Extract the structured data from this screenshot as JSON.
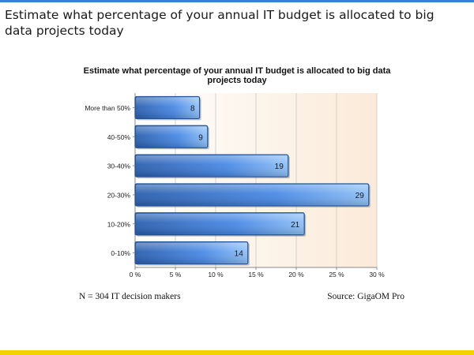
{
  "slide": {
    "title": "Estimate what percentage of your annual IT budget is allocated to big data projects today",
    "note": "N = 304 IT decision makers",
    "source": "Source: GigaOM Pro"
  },
  "colors": {
    "bar_dark": "#2b5fae",
    "bar_light": "#8fc0f7",
    "plot_bg_right": "#fbead8",
    "accent_bar": "#f2d200",
    "top_rule": "#3b7fd0"
  },
  "chart_data": {
    "type": "bar",
    "orientation": "horizontal",
    "title_lines": [
      "Estimate what percentage of your annual IT budget is allocated to big data",
      "projects today"
    ],
    "categories": [
      "More than 50%",
      "40-50%",
      "30-40%",
      "20-30%",
      "10-20%",
      "0-10%"
    ],
    "values": [
      8,
      9,
      19,
      29,
      21,
      14
    ],
    "data_labels": [
      "8",
      "9",
      "19",
      "29",
      "21",
      "14"
    ],
    "xlim": [
      0,
      30
    ],
    "x_ticks": [
      0,
      5,
      10,
      15,
      20,
      25,
      30
    ],
    "x_tick_labels": [
      "0 %",
      "5 %",
      "10 %",
      "15 %",
      "20 %",
      "25 %",
      "30 %"
    ],
    "grid": true,
    "legend": "none"
  }
}
